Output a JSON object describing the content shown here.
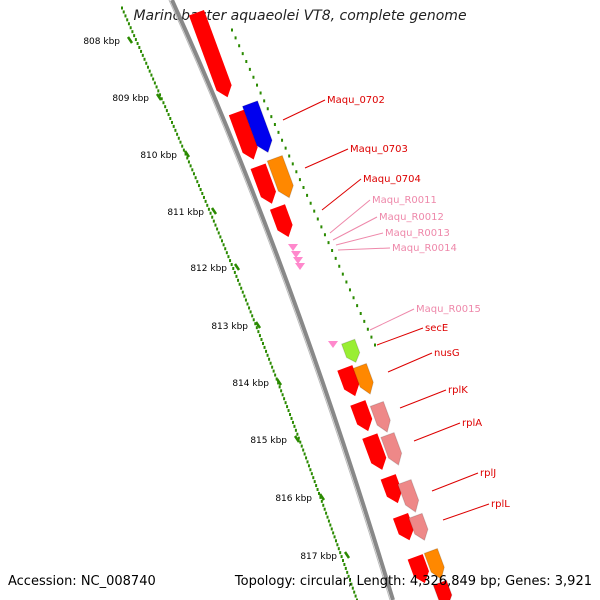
{
  "title": "Marinobacter aquaeolei VT8, complete genome",
  "footer": {
    "accession": "Accession: NC_008740",
    "summary": "Topology: circular; Length: 4,326,849 bp; Genes: 3,921"
  },
  "colors": {
    "tick": "#2a8a00",
    "label_red": "#dd0000",
    "label_pink": "#ee88aa",
    "backbone": "#888888"
  },
  "ticks": [
    "808 kbp",
    "809 kbp",
    "810 kbp",
    "811 kbp",
    "812 kbp",
    "813 kbp",
    "814 kbp",
    "815 kbp",
    "816 kbp",
    "817 kbp"
  ],
  "genes": [
    {
      "label": "Maqu_0702",
      "color": "#0000ee",
      "style": "red"
    },
    {
      "label": "Maqu_0703",
      "color": "#ff8800",
      "style": "red"
    },
    {
      "label": "Maqu_0704",
      "color": "#ee0000",
      "style": "red"
    },
    {
      "label": "Maqu_R0011",
      "color": "#ff88cc",
      "style": "pink"
    },
    {
      "label": "Maqu_R0012",
      "color": "#ff88cc",
      "style": "pink"
    },
    {
      "label": "Maqu_R0013",
      "color": "#ff88cc",
      "style": "pink"
    },
    {
      "label": "Maqu_R0014",
      "color": "#ff88cc",
      "style": "pink"
    },
    {
      "label": "Maqu_R0015",
      "color": "#ff88cc",
      "style": "pink"
    },
    {
      "label": "secE",
      "color": "#99ee33",
      "style": "red"
    },
    {
      "label": "nusG",
      "color": "#ff8800",
      "style": "red"
    },
    {
      "label": "rplK",
      "color": "#ee8888",
      "style": "red"
    },
    {
      "label": "rplA",
      "color": "#ee8888",
      "style": "red"
    },
    {
      "label": "rplJ",
      "color": "#ee8888",
      "style": "red"
    },
    {
      "label": "rplL",
      "color": "#ee8888",
      "style": "red"
    }
  ]
}
